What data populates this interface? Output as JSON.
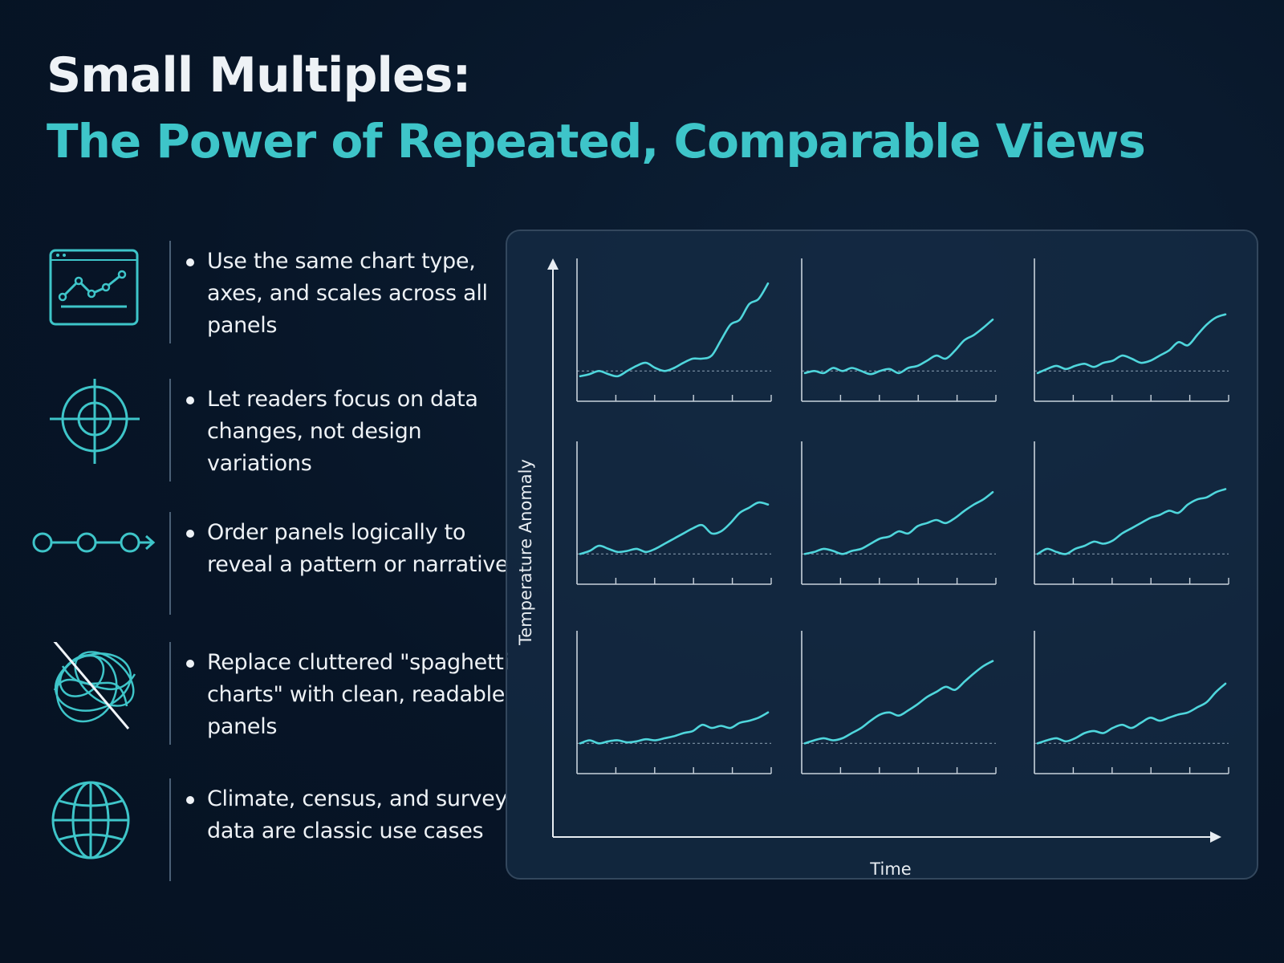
{
  "header": {
    "title": "Small Multiples:",
    "subtitle": "The Power of Repeated, Comparable Views"
  },
  "features": [
    {
      "icon": "line-chart-window-icon",
      "text": "Use the same chart type, axes, and scales across all panels"
    },
    {
      "icon": "crosshair-target-icon",
      "text": "Let readers focus on data changes, not design variations"
    },
    {
      "icon": "sequence-arrow-icon",
      "text": "Order panels logically to reveal a pattern or narrative"
    },
    {
      "icon": "crossed-out-tangle-icon",
      "text": "Replace cluttered \"spaghetti charts\" with clean, readable panels"
    },
    {
      "icon": "globe-icon",
      "text": "Climate, census, and survey data are classic use cases"
    }
  ],
  "colors": {
    "background": "#071527",
    "accent": "#3ec5c9",
    "line": "#4fd6dc",
    "axis": "#c8d2dc",
    "baseline": "#7f93a6",
    "text": "#eef2f6"
  },
  "chart_data": {
    "type": "line",
    "layout": "small-multiples",
    "rows": 3,
    "cols": 3,
    "xlabel": "Time",
    "ylabel": "Temperature Anomaly",
    "shared_axes": true,
    "baseline": 0,
    "ylim": [
      -0.2,
      1.0
    ],
    "x": [
      0,
      1,
      2,
      3,
      4,
      5,
      6,
      7,
      8,
      9,
      10,
      11,
      12,
      13,
      14,
      15,
      16,
      17,
      18,
      19,
      20
    ],
    "panels": [
      {
        "values": [
          -0.05,
          -0.03,
          0.0,
          -0.03,
          -0.05,
          0.0,
          0.05,
          0.08,
          0.03,
          0.0,
          0.03,
          0.08,
          0.12,
          0.12,
          0.15,
          0.3,
          0.45,
          0.5,
          0.65,
          0.7,
          0.85
        ]
      },
      {
        "values": [
          -0.02,
          0.0,
          -0.02,
          0.03,
          0.0,
          0.03,
          0.0,
          -0.03,
          0.0,
          0.02,
          -0.02,
          0.03,
          0.05,
          0.1,
          0.15,
          0.12,
          0.2,
          0.3,
          0.35,
          0.42,
          0.5
        ]
      },
      {
        "values": [
          -0.02,
          0.02,
          0.05,
          0.02,
          0.05,
          0.07,
          0.04,
          0.08,
          0.1,
          0.15,
          0.12,
          0.08,
          0.1,
          0.15,
          0.2,
          0.28,
          0.25,
          0.35,
          0.45,
          0.52,
          0.55
        ]
      },
      {
        "values": [
          0.0,
          0.03,
          0.08,
          0.05,
          0.02,
          0.03,
          0.05,
          0.02,
          0.05,
          0.1,
          0.15,
          0.2,
          0.25,
          0.28,
          0.2,
          0.22,
          0.3,
          0.4,
          0.45,
          0.5,
          0.48
        ]
      },
      {
        "values": [
          0.0,
          0.02,
          0.05,
          0.03,
          0.0,
          0.03,
          0.05,
          0.1,
          0.15,
          0.17,
          0.22,
          0.2,
          0.27,
          0.3,
          0.33,
          0.3,
          0.35,
          0.42,
          0.48,
          0.53,
          0.6
        ]
      },
      {
        "values": [
          0.0,
          0.05,
          0.02,
          0.0,
          0.05,
          0.08,
          0.12,
          0.1,
          0.13,
          0.2,
          0.25,
          0.3,
          0.35,
          0.38,
          0.42,
          0.4,
          0.48,
          0.53,
          0.55,
          0.6,
          0.63
        ]
      },
      {
        "values": [
          0.0,
          0.03,
          0.0,
          0.02,
          0.03,
          0.01,
          0.02,
          0.04,
          0.03,
          0.05,
          0.07,
          0.1,
          0.12,
          0.18,
          0.15,
          0.17,
          0.15,
          0.2,
          0.22,
          0.25,
          0.3
        ]
      },
      {
        "values": [
          0.0,
          0.03,
          0.05,
          0.03,
          0.05,
          0.1,
          0.15,
          0.22,
          0.28,
          0.3,
          0.27,
          0.32,
          0.38,
          0.45,
          0.5,
          0.55,
          0.52,
          0.6,
          0.68,
          0.75,
          0.8
        ]
      },
      {
        "values": [
          0.0,
          0.03,
          0.05,
          0.02,
          0.05,
          0.1,
          0.12,
          0.1,
          0.15,
          0.18,
          0.15,
          0.2,
          0.25,
          0.22,
          0.25,
          0.28,
          0.3,
          0.35,
          0.4,
          0.5,
          0.58
        ]
      }
    ]
  }
}
